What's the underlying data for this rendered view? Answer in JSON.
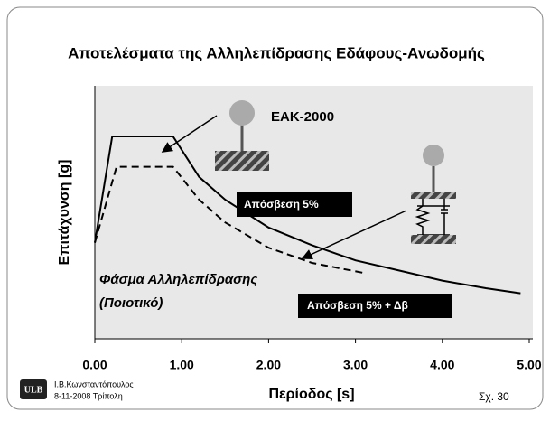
{
  "chart_data": {
    "type": "line",
    "title": "Αποτελέσματα της Αλληλεπίδρασης Εδάφους-Ανωδομής",
    "x_label": "Περίοδος [s]",
    "y_label": "Επιτάχυνση  [g]",
    "xlim": [
      0,
      5
    ],
    "xticks": [
      {
        "value": 0,
        "label": "0.00"
      },
      {
        "value": 1,
        "label": "1.00"
      },
      {
        "value": 2,
        "label": "2.00"
      },
      {
        "value": 3,
        "label": "3.00"
      },
      {
        "value": 4,
        "label": "4.00"
      },
      {
        "value": 5,
        "label": "5.00"
      }
    ],
    "ylim": [
      0,
      1
    ],
    "series": [
      {
        "color": "#000000",
        "dash": false,
        "x": [
          0,
          0.2,
          0.9,
          1.2,
          1.5,
          2,
          2.5,
          3,
          3.5,
          4,
          4.5,
          4.9
        ],
        "values": [
          0.38,
          0.8,
          0.8,
          0.64,
          0.55,
          0.44,
          0.37,
          0.31,
          0.27,
          0.23,
          0.2,
          0.18
        ]
      },
      {
        "color": "#000000",
        "dash": true,
        "x": [
          0,
          0.25,
          0.9,
          1.2,
          1.5,
          2,
          2.5,
          3.1
        ],
        "values": [
          0.38,
          0.68,
          0.68,
          0.55,
          0.46,
          0.36,
          0.3,
          0.26
        ]
      }
    ],
    "annotations": [
      "ΕΑΚ-2000",
      "Απόσβεση 5%",
      "Φάσμα Αλληλεπίδρασης",
      "(Ποιοτικό)",
      "Απόσβεση 5% + Δβ"
    ]
  },
  "footer": {
    "logo": "ULB",
    "author": "Ι.Β.Κωνσταντόπουλος",
    "date_place": "8-11-2008 Τρίπολη",
    "figure": "Σχ. 30"
  }
}
